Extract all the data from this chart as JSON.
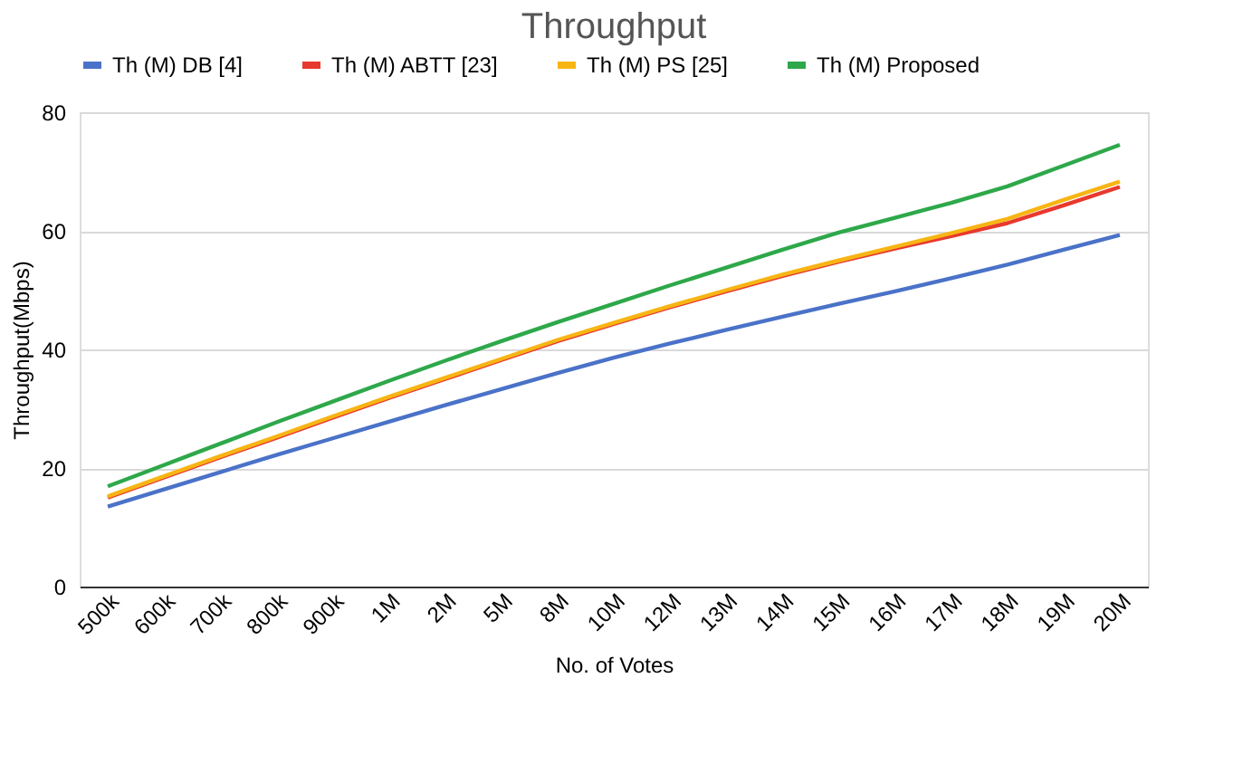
{
  "chart_data": {
    "type": "line",
    "title": "Throughput",
    "xlabel": "No. of Votes",
    "ylabel": "Throughput(Mbps)",
    "categories": [
      "500k",
      "600k",
      "700k",
      "800k",
      "900k",
      "1M",
      "2M",
      "5M",
      "8M",
      "10M",
      "12M",
      "13M",
      "14M",
      "15M",
      "16M",
      "17M",
      "18M",
      "19M",
      "20M"
    ],
    "series": [
      {
        "name": "Th (M) DB [4]",
        "color": "#4a72c8",
        "values": [
          13.5,
          16.4,
          19.3,
          22.2,
          25.0,
          27.8,
          30.6,
          33.3,
          36.0,
          38.6,
          41.0,
          43.3,
          45.5,
          47.7,
          49.8,
          52.0,
          54.3,
          56.8,
          59.3
        ]
      },
      {
        "name": "Th (M) ABTT [23]",
        "color": "#e8392e",
        "values": [
          15.0,
          18.4,
          21.8,
          25.1,
          28.5,
          31.8,
          35.0,
          38.2,
          41.4,
          44.3,
          47.1,
          49.8,
          52.4,
          54.8,
          57.0,
          59.1,
          61.3,
          64.3,
          67.4
        ]
      },
      {
        "name": "Th (M) PS [25]",
        "color": "#f7b514",
        "values": [
          15.2,
          18.6,
          22.0,
          25.3,
          28.7,
          32.0,
          35.2,
          38.4,
          41.6,
          44.5,
          47.3,
          50.0,
          52.6,
          55.0,
          57.3,
          59.6,
          62.0,
          65.2,
          68.3
        ]
      },
      {
        "name": "Th (M)  Proposed",
        "color": "#2ea84a",
        "values": [
          16.9,
          20.5,
          24.1,
          27.7,
          31.2,
          34.7,
          38.1,
          41.4,
          44.6,
          47.7,
          50.8,
          53.8,
          56.8,
          59.7,
          62.2,
          64.7,
          67.5,
          71.0,
          74.5
        ]
      }
    ],
    "ylim": [
      0,
      80
    ],
    "yticks": [
      0,
      20,
      40,
      60,
      80
    ],
    "grid": "y",
    "legend": "top"
  }
}
